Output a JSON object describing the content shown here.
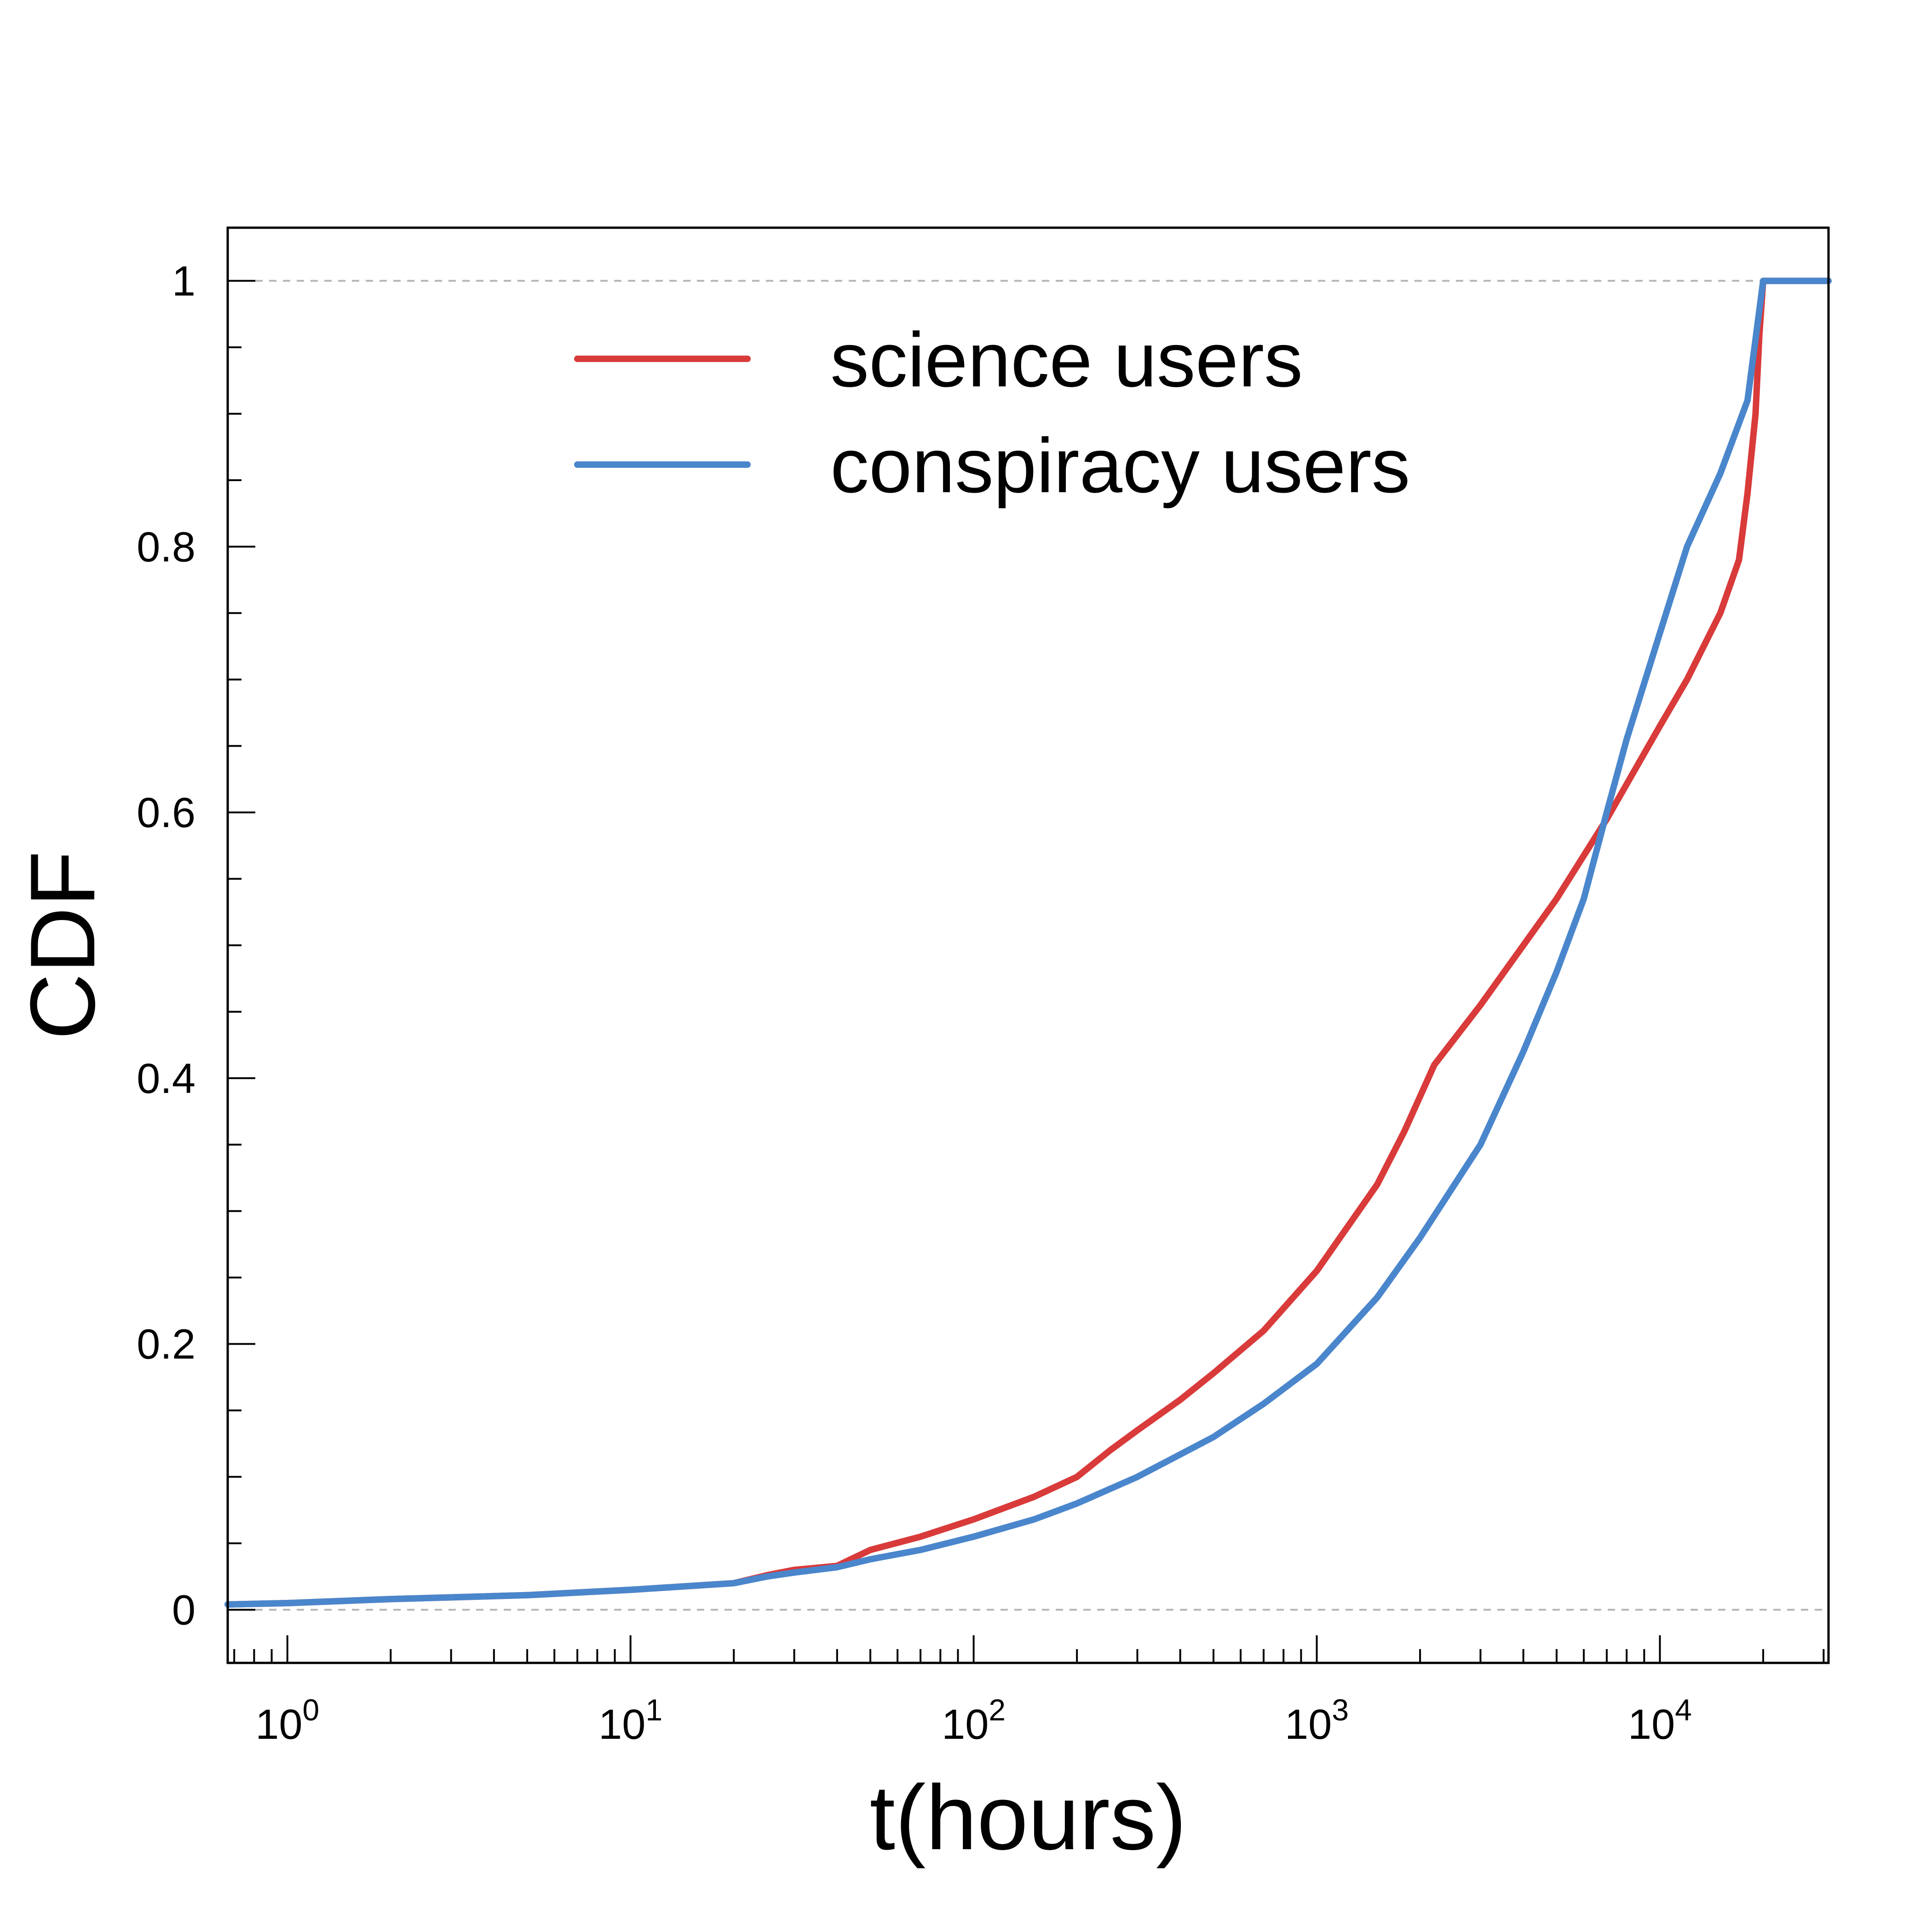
{
  "chart_data": {
    "type": "line",
    "xlabel": "t(hours)",
    "ylabel": "CDF",
    "x_scale": "log",
    "xlim": [
      0.67,
      31000
    ],
    "ylim": [
      -0.04,
      1.04
    ],
    "x_ticks": [
      {
        "value": 1,
        "base": "10",
        "exp": "0"
      },
      {
        "value": 10,
        "base": "10",
        "exp": "1"
      },
      {
        "value": 100,
        "base": "10",
        "exp": "2"
      },
      {
        "value": 1000,
        "base": "10",
        "exp": "3"
      },
      {
        "value": 10000,
        "base": "10",
        "exp": "4"
      }
    ],
    "y_ticks": [
      {
        "value": 0,
        "label": "0"
      },
      {
        "value": 0.2,
        "label": "0.2"
      },
      {
        "value": 0.4,
        "label": "0.4"
      },
      {
        "value": 0.6,
        "label": "0.6"
      },
      {
        "value": 0.8,
        "label": "0.8"
      },
      {
        "value": 1,
        "label": "1"
      }
    ],
    "reference_lines": [
      0,
      1
    ],
    "grid": false,
    "legend_position": "top-center",
    "series": [
      {
        "name": "science users",
        "color": "#d93a3a",
        "x": [
          0.67,
          1,
          2,
          5,
          10,
          20,
          25,
          30,
          40,
          50,
          70,
          100,
          150,
          200,
          250,
          300,
          400,
          500,
          700,
          1000,
          1500,
          1800,
          2200,
          3000,
          4000,
          5000,
          7000,
          10000,
          12000,
          15000,
          17000,
          18000,
          19000,
          19500,
          20000,
          31000
        ],
        "y": [
          0.004,
          0.005,
          0.008,
          0.011,
          0.015,
          0.02,
          0.026,
          0.03,
          0.033,
          0.045,
          0.055,
          0.068,
          0.085,
          0.1,
          0.12,
          0.135,
          0.158,
          0.178,
          0.21,
          0.255,
          0.32,
          0.36,
          0.41,
          0.455,
          0.5,
          0.535,
          0.595,
          0.665,
          0.7,
          0.75,
          0.79,
          0.84,
          0.9,
          0.96,
          1.0,
          1.0
        ]
      },
      {
        "name": "conspiracy users",
        "color": "#4a86cc",
        "x": [
          0.67,
          1,
          2,
          5,
          10,
          20,
          25,
          30,
          40,
          50,
          70,
          100,
          150,
          200,
          300,
          500,
          700,
          1000,
          1500,
          2000,
          3000,
          4000,
          5000,
          6000,
          7000,
          8000,
          10000,
          12000,
          15000,
          18000,
          20000,
          31000
        ],
        "y": [
          0.004,
          0.005,
          0.008,
          0.011,
          0.015,
          0.02,
          0.025,
          0.028,
          0.032,
          0.038,
          0.045,
          0.055,
          0.068,
          0.08,
          0.1,
          0.13,
          0.155,
          0.185,
          0.235,
          0.28,
          0.35,
          0.42,
          0.48,
          0.535,
          0.6,
          0.655,
          0.735,
          0.8,
          0.855,
          0.91,
          1.0,
          1.0
        ]
      }
    ]
  }
}
